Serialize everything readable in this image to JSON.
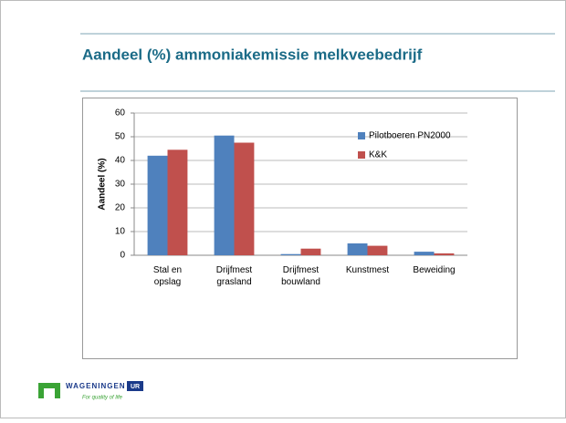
{
  "slide": {
    "title": "Aandeel (%) ammoniakemissie melkveebedrijf",
    "logo": {
      "name": "WAGENINGEN",
      "badge": "UR",
      "tagline": "For quality of life"
    }
  },
  "chart_data": {
    "type": "bar",
    "ylabel": "Aandeel (%)",
    "categories": [
      "Stal en\nopslag",
      "Drijfmest\ngrasland",
      "Drijfmest\nbouwland",
      "Kunstmest",
      "Beweiding"
    ],
    "series": [
      {
        "name": "Pilotboeren PN2000",
        "color": "#4f81bd",
        "values": [
          42,
          50.5,
          0.5,
          5,
          1.5
        ]
      },
      {
        "name": "K&K",
        "color": "#c0504d",
        "values": [
          44.5,
          47.5,
          2.8,
          4,
          0.8
        ]
      }
    ],
    "ylim": [
      0,
      60
    ],
    "yticks": [
      0,
      10,
      20,
      30,
      40,
      50,
      60
    ],
    "grid": true,
    "legend": "top-right"
  }
}
